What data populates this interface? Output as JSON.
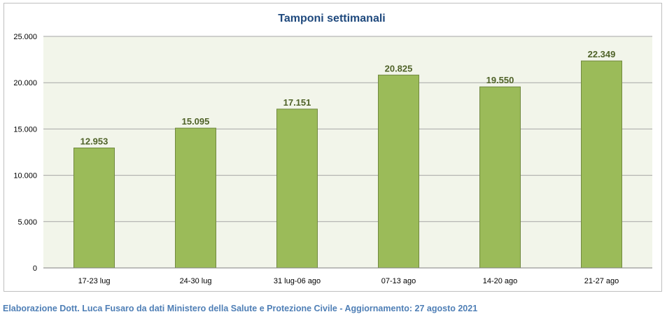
{
  "colors": {
    "bar_fill": "#9bbb59",
    "bar_stroke": "#71893f",
    "data_label": "#4f6228",
    "title": "#1f497d",
    "plot_background": "#f2f5ea",
    "gridline": "#a6a6a6",
    "footer_text": "#4f7fb6"
  },
  "chart_data": {
    "type": "bar",
    "title": "Tamponi settimanali",
    "xlabel": "",
    "ylabel": "",
    "categories": [
      "17-23 lug",
      "24-30 lug",
      "31 lug-06 ago",
      "07-13 ago",
      "14-20 ago",
      "21-27 ago"
    ],
    "values": [
      12953,
      15095,
      17151,
      20825,
      19550,
      22349
    ],
    "value_labels": [
      "12.953",
      "15.095",
      "17.151",
      "20.825",
      "19.550",
      "22.349"
    ],
    "ylim": [
      0,
      25000
    ],
    "yticks": [
      0,
      5000,
      10000,
      15000,
      20000,
      25000
    ],
    "ytick_labels": [
      "0",
      "5.000",
      "10.000",
      "15.000",
      "20.000",
      "25.000"
    ],
    "grid": true,
    "legend": "none"
  },
  "footer": {
    "text": "Elaborazione Dott. Luca Fusaro da dati Ministero della Salute e Protezione Civile - Aggiornamento: 27 agosto 2021"
  }
}
